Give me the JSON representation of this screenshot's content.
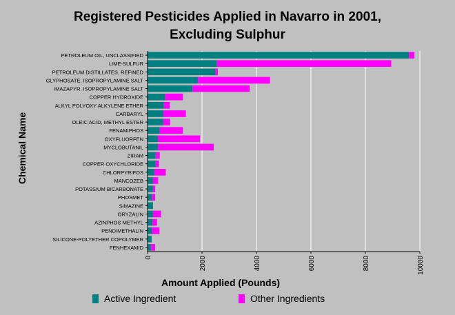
{
  "chart_data": {
    "type": "bar",
    "orientation": "horizontal",
    "stacked": true,
    "title": "Registered Pesticides Applied in Navarro in 2001,",
    "subtitle": "Excluding Sulphur",
    "xlabel": "Amount Applied (Pounds)",
    "ylabel": "Chemical Name",
    "xlim": [
      0,
      10000
    ],
    "xticks": [
      "0",
      "2000",
      "4000",
      "6000",
      "8000",
      "10000"
    ],
    "grid": "vertical",
    "legend_position": "bottom",
    "categories": [
      "PETROLEUM OIL, UNCLASSIFIED",
      "LIME-SULFUR",
      "PETROLEUM DISTILLATES, REFINED",
      "GLYPHOSATE, ISOPROPYLAMINE SALT",
      "IMAZAPYR, ISOPROPYLAMINE SALT",
      "COPPER HYDROXIDE",
      "ALKYL POLYOXY ALKYLENE ETHER",
      "CARBARYL",
      "OLEIC ACID, METHYL ESTER",
      "FENAMIPHOS",
      "OXYFLUORFEN",
      "MYCLOBUTANIL",
      "ZIRAM",
      "COPPER OXYCHLORIDE",
      "CHLORPYRIFOS",
      "MANCOZEB",
      "POTASSIUM BICARBONATE",
      "PHOSMET",
      "SIMAZINE",
      "ORYZALIN",
      "AZINPHOS METHYL",
      "PENDIMETHALIN",
      "SILICONE-POLYETHER COPOLYMER",
      "FENHEXAMID"
    ],
    "series": [
      {
        "name": "Active Ingredient",
        "color": "#008080",
        "values": [
          9600,
          2550,
          2500,
          1850,
          1650,
          650,
          600,
          580,
          580,
          450,
          380,
          380,
          300,
          300,
          250,
          200,
          200,
          160,
          200,
          200,
          180,
          160,
          150,
          130
        ]
      },
      {
        "name": "Other Ingredients",
        "color": "#ff00ff",
        "values": [
          200,
          6400,
          80,
          2650,
          2100,
          650,
          220,
          830,
          250,
          850,
          1550,
          2050,
          150,
          120,
          420,
          190,
          80,
          120,
          0,
          300,
          170,
          280,
          0,
          150
        ]
      }
    ]
  }
}
